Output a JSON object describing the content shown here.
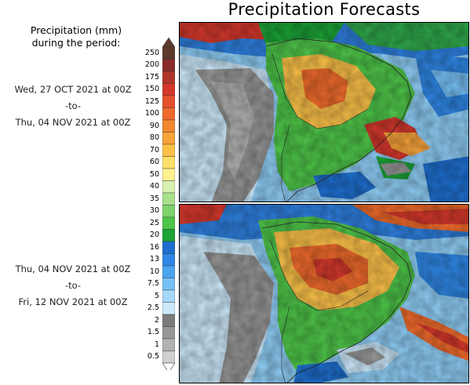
{
  "title": "Precipitation Forecasts",
  "legend": {
    "title_line1": "Precipitation (mm)",
    "title_line2": "during the period:",
    "ticks": [
      "250",
      "200",
      "175",
      "150",
      "125",
      "100",
      "90",
      "80",
      "70",
      "60",
      "50",
      "40",
      "35",
      "30",
      "25",
      "20",
      "16",
      "13",
      "10",
      "7.5",
      "5",
      "2.5",
      "2",
      "1.5",
      "1",
      "0.5"
    ],
    "colors": [
      "#5c3a2e",
      "#8a2c2a",
      "#b0362c",
      "#d4382c",
      "#e5512c",
      "#ee6a2c",
      "#f3872e",
      "#f8a33a",
      "#fbc149",
      "#fde06a",
      "#fff08e",
      "#d7f1b1",
      "#a8e08c",
      "#7fd36b",
      "#4ec549",
      "#1ba336",
      "#1e6fcf",
      "#2f86e4",
      "#4aa3ef",
      "#77c0f5",
      "#a6d8fa",
      "#cdeafc",
      "#7a7a7a",
      "#969696",
      "#b2b2b2",
      "#cfcfcf"
    ]
  },
  "periods": [
    {
      "start": "Wed, 27 OCT 2021 at 00Z",
      "sep": "-to-",
      "end": "Thu, 04 NOV 2021 at 00Z"
    },
    {
      "start": "Thu, 04 NOV 2021 at 00Z",
      "sep": "-to-",
      "end": "Fri, 12 NOV 2021 at 00Z"
    }
  ]
}
